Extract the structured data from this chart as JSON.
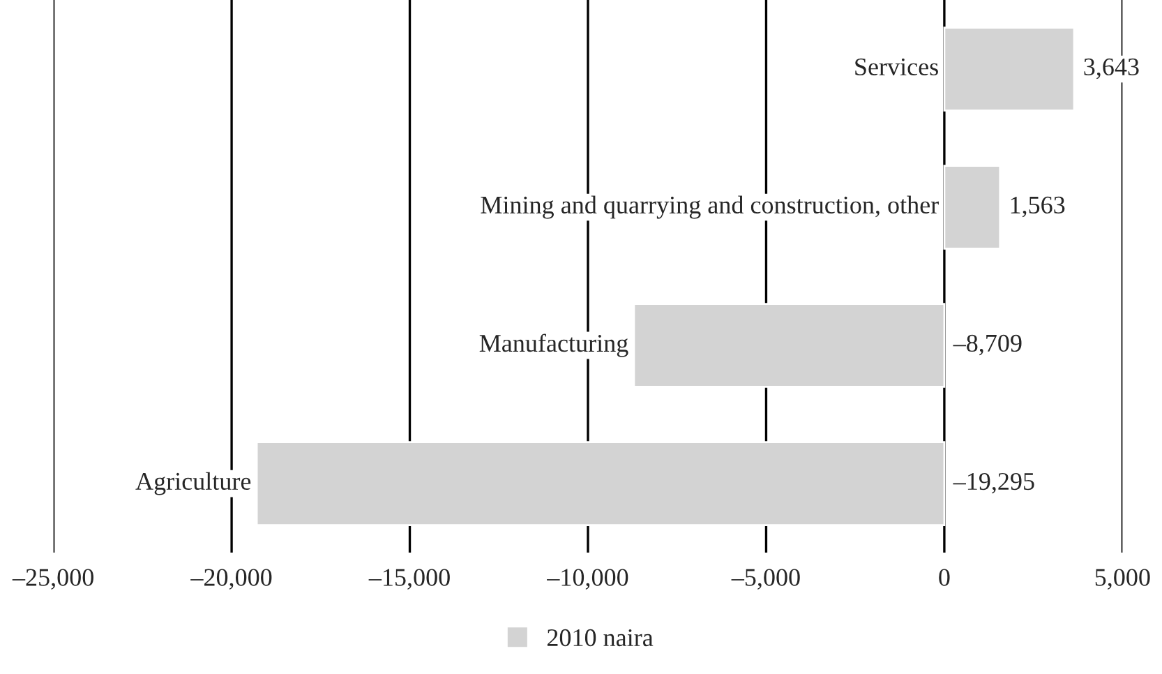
{
  "chart_data": {
    "type": "bar",
    "orientation": "horizontal",
    "categories": [
      "Services",
      "Mining and quarrying and construction, other",
      "Manufacturing",
      "Agriculture"
    ],
    "series": [
      {
        "name": "2010 naira",
        "color": "#d3d3d3",
        "values": [
          3643,
          1563,
          -8709,
          -19295
        ]
      }
    ],
    "value_labels": [
      "3,643",
      "1,563",
      "–8,709",
      "–19,295"
    ],
    "xlim": [
      -25000,
      5000
    ],
    "xticks": [
      {
        "value": -25000,
        "label": "–25,000"
      },
      {
        "value": -20000,
        "label": "–20,000"
      },
      {
        "value": -15000,
        "label": "–15,000"
      },
      {
        "value": -10000,
        "label": "–10,000"
      },
      {
        "value": -5000,
        "label": "–5,000"
      },
      {
        "value": 0,
        "label": "0"
      },
      {
        "value": 5000,
        "label": "5,000"
      }
    ],
    "grid": "x",
    "legend": "bottom",
    "tick_labels": "x"
  }
}
